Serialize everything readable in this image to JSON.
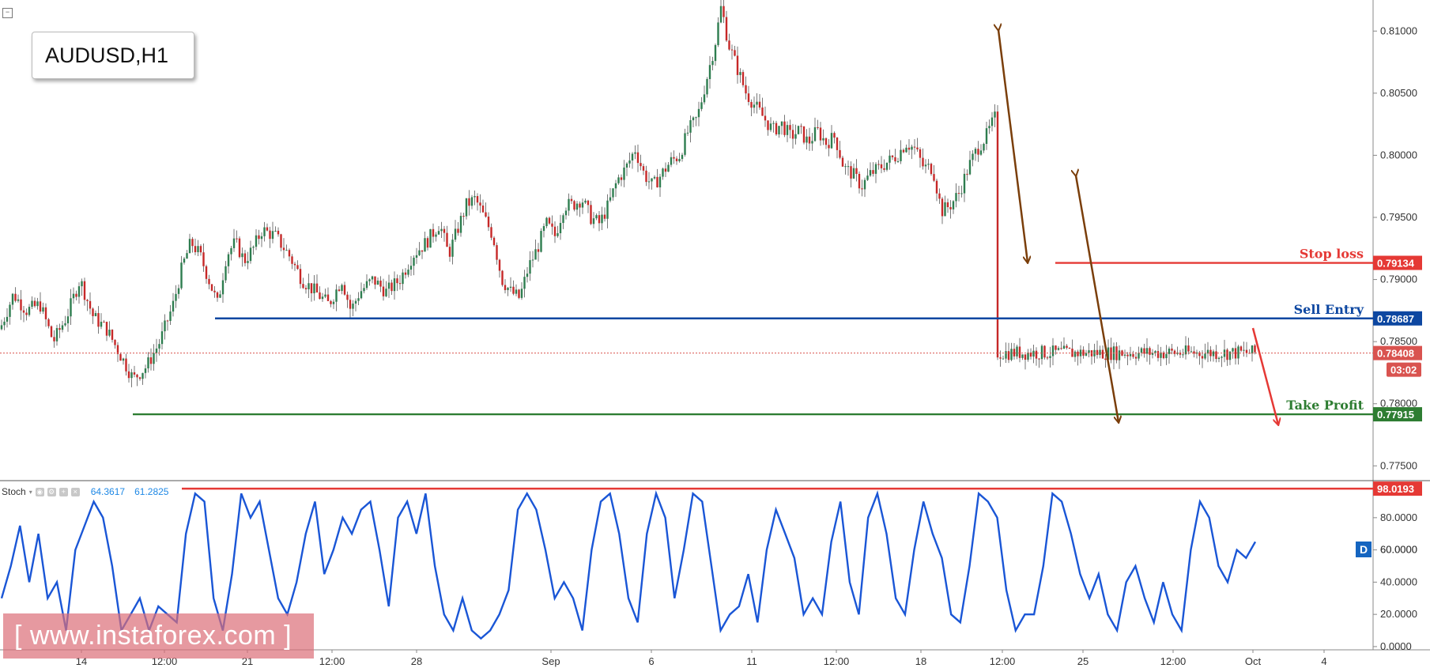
{
  "symbol": "AUDUSD,H1",
  "watermark": "[ www.instaforex.com ]",
  "stoch": {
    "label": "Stoch",
    "k_value": "64.3617",
    "d_value": "61.2825",
    "badge": "D"
  },
  "colors": {
    "bull": "#2e7d4f",
    "bear": "#c62828",
    "stop_loss": "#e53935",
    "sell_entry": "#0d47a1",
    "take_profit": "#2e7d32",
    "current": "#d9534f",
    "stoch_line": "#1a56d6",
    "arrow_brown": "#7a3e0a",
    "arrow_red": "#e53935"
  },
  "chart_data": [
    {
      "type": "candlestick",
      "title": "AUDUSD,H1",
      "ylim": [
        0.774,
        0.8125
      ],
      "y_ticks": [
        "0.81000",
        "0.80500",
        "0.80000",
        "0.79500",
        "0.79000",
        "0.78500",
        "0.78000",
        "0.77500"
      ],
      "x_ticks": [
        "14",
        "12:00",
        "21",
        "12:00",
        "28",
        "Sep",
        "6",
        "11",
        "12:00",
        "18",
        "12:00",
        "25",
        "12:00",
        "Oct",
        "4"
      ],
      "levels": [
        {
          "name": "Stop loss",
          "value": 0.79134,
          "tag": "0.79134"
        },
        {
          "name": "Sell Entry",
          "value": 0.78687,
          "tag": "0.78687"
        },
        {
          "name": "Take Profit",
          "value": 0.77915,
          "tag": "0.77915"
        }
      ],
      "current_price": {
        "value": 0.78408,
        "tag": "0.78408",
        "countdown": "03:02"
      },
      "price_path": [
        [
          0,
          0.786
        ],
        [
          15,
          0.7888
        ],
        [
          30,
          0.7875
        ],
        [
          45,
          0.788
        ],
        [
          60,
          0.785
        ],
        [
          75,
          0.787
        ],
        [
          90,
          0.79
        ],
        [
          105,
          0.787
        ],
        [
          120,
          0.786
        ],
        [
          135,
          0.784
        ],
        [
          150,
          0.782
        ],
        [
          165,
          0.783
        ],
        [
          180,
          0.785
        ],
        [
          195,
          0.788
        ],
        [
          205,
          0.791
        ],
        [
          215,
          0.793
        ],
        [
          225,
          0.792
        ],
        [
          235,
          0.79
        ],
        [
          245,
          0.788
        ],
        [
          255,
          0.792
        ],
        [
          265,
          0.793
        ],
        [
          275,
          0.7915
        ],
        [
          285,
          0.7925
        ],
        [
          295,
          0.794
        ],
        [
          310,
          0.7935
        ],
        [
          325,
          0.792
        ],
        [
          340,
          0.79
        ],
        [
          355,
          0.789
        ],
        [
          370,
          0.788
        ],
        [
          385,
          0.79
        ],
        [
          395,
          0.7875
        ],
        [
          405,
          0.789
        ],
        [
          420,
          0.79
        ],
        [
          435,
          0.789
        ],
        [
          450,
          0.79
        ],
        [
          465,
          0.792
        ],
        [
          480,
          0.793
        ],
        [
          495,
          0.7945
        ],
        [
          505,
          0.792
        ],
        [
          515,
          0.794
        ],
        [
          525,
          0.796
        ],
        [
          535,
          0.7965
        ],
        [
          545,
          0.795
        ],
        [
          555,
          0.7935
        ],
        [
          565,
          0.79
        ],
        [
          575,
          0.789
        ],
        [
          585,
          0.7885
        ],
        [
          595,
          0.791
        ],
        [
          605,
          0.7925
        ],
        [
          615,
          0.7945
        ],
        [
          625,
          0.7935
        ],
        [
          635,
          0.796
        ],
        [
          645,
          0.796
        ],
        [
          655,
          0.7965
        ],
        [
          665,
          0.795
        ],
        [
          675,
          0.7945
        ],
        [
          685,
          0.796
        ],
        [
          695,
          0.798
        ],
        [
          705,
          0.799
        ],
        [
          715,
          0.8005
        ],
        [
          725,
          0.7985
        ],
        [
          735,
          0.7975
        ],
        [
          745,
          0.7985
        ],
        [
          755,
          0.7995
        ],
        [
          765,
          0.8
        ],
        [
          775,
          0.802
        ],
        [
          785,
          0.803
        ],
        [
          795,
          0.806
        ],
        [
          805,
          0.809
        ],
        [
          812,
          0.812
        ],
        [
          820,
          0.809
        ],
        [
          830,
          0.807
        ],
        [
          840,
          0.805
        ],
        [
          850,
          0.804
        ],
        [
          860,
          0.803
        ],
        [
          870,
          0.802
        ],
        [
          880,
          0.8025
        ],
        [
          890,
          0.8015
        ],
        [
          900,
          0.802
        ],
        [
          910,
          0.801
        ],
        [
          920,
          0.802
        ],
        [
          930,
          0.801
        ],
        [
          940,
          0.8015
        ],
        [
          950,
          0.799
        ],
        [
          960,
          0.7985
        ],
        [
          970,
          0.7975
        ],
        [
          980,
          0.7985
        ],
        [
          990,
          0.799
        ],
        [
          1000,
          0.7995
        ],
        [
          1010,
          0.8
        ],
        [
          1020,
          0.801
        ],
        [
          1030,
          0.8005
        ],
        [
          1040,
          0.799
        ],
        [
          1050,
          0.799
        ],
        [
          1060,
          0.7955
        ],
        [
          1070,
          0.796
        ],
        [
          1080,
          0.797
        ],
        [
          1090,
          0.799
        ],
        [
          1100,
          0.8005
        ],
        [
          1110,
          0.8015
        ],
        [
          1120,
          0.803
        ],
        [
          1130,
          0.8055
        ],
        [
          1138,
          0.807
        ],
        [
          1145,
          0.801
        ],
        [
          1155,
          0.799
        ],
        [
          1162,
          0.7955
        ],
        [
          1170,
          0.7935
        ],
        [
          1178,
          0.7935
        ],
        [
          1185,
          0.792
        ],
        [
          1192,
          0.793
        ],
        [
          1200,
          0.796
        ],
        [
          1210,
          0.798
        ],
        [
          1220,
          0.797
        ],
        [
          1230,
          0.797
        ],
        [
          1240,
          0.796
        ],
        [
          1250,
          0.7955
        ],
        [
          1260,
          0.7945
        ],
        [
          1270,
          0.794
        ],
        [
          1278,
          0.79
        ],
        [
          1285,
          0.788
        ],
        [
          1295,
          0.787
        ],
        [
          1305,
          0.786
        ],
        [
          1312,
          0.784
        ],
        [
          1320,
          0.786
        ],
        [
          1330,
          0.787
        ],
        [
          1340,
          0.782
        ],
        [
          1350,
          0.781
        ],
        [
          1360,
          0.783
        ],
        [
          1370,
          0.785
        ],
        [
          1380,
          0.7845
        ],
        [
          1390,
          0.784
        ],
        [
          1400,
          0.7835
        ],
        [
          1408,
          0.784
        ],
        [
          1415,
          0.7841
        ]
      ]
    },
    {
      "type": "line",
      "title": "Stoch",
      "ylim": [
        -2,
        102
      ],
      "y_ticks": [
        "80.0000",
        "60.0000",
        "40.0000",
        "20.0000",
        "0.0000"
      ],
      "levels": [
        {
          "name": "overbought",
          "value": 98.0193,
          "tag": "98.0193"
        }
      ],
      "current_tag": "60.0000",
      "series": [
        {
          "values": [
            30,
            50,
            75,
            40,
            70,
            30,
            40,
            10,
            60,
            75,
            90,
            80,
            50,
            10,
            20,
            30,
            10,
            25,
            20,
            15,
            70,
            95,
            90,
            30,
            10,
            45,
            95,
            80,
            90,
            60,
            30,
            20,
            40,
            70,
            90,
            45,
            60,
            80,
            70,
            85,
            90,
            60,
            25,
            80,
            90,
            70,
            95,
            50,
            20,
            10,
            30,
            10,
            5,
            10,
            20,
            35,
            85,
            95,
            85,
            60,
            30,
            40,
            30,
            10,
            60,
            90,
            95,
            70,
            30,
            15,
            70,
            95,
            80,
            30,
            60,
            95,
            90,
            50,
            10,
            20,
            25,
            45,
            15,
            60,
            85,
            70,
            55,
            20,
            30,
            20,
            65,
            90,
            40,
            20,
            80,
            95,
            70,
            30,
            20,
            60,
            90,
            70,
            55,
            20,
            15,
            50,
            95,
            90,
            80,
            35,
            10,
            20,
            20,
            50,
            95,
            90,
            70,
            45,
            30,
            45,
            20,
            10,
            40,
            50,
            30,
            15,
            40,
            20,
            10,
            60,
            90,
            80,
            50,
            40,
            60,
            55,
            65
          ]
        }
      ]
    }
  ]
}
